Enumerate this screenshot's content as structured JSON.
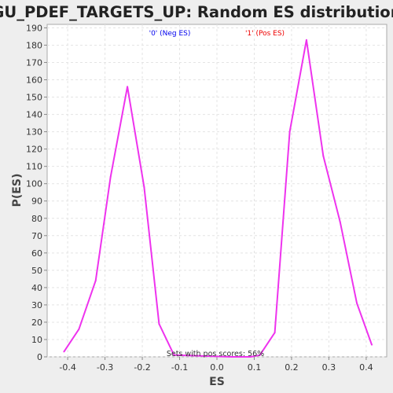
{
  "chart_data": {
    "type": "line",
    "title": "GU_PDEF_TARGETS_UP: Random ES distribution",
    "xlabel": "ES",
    "ylabel": "P(ES)",
    "xlim": [
      -0.455,
      0.455
    ],
    "ylim": [
      0,
      192
    ],
    "x_ticks": [
      "-0.4",
      "-0.3",
      "-0.2",
      "-0.1",
      "0.0",
      "0.1",
      "0.2",
      "0.3",
      "0.4"
    ],
    "x_tick_values": [
      -0.4,
      -0.3,
      -0.2,
      -0.1,
      0.0,
      0.1,
      0.2,
      0.3,
      0.4
    ],
    "y_ticks": [
      "0",
      "10",
      "20",
      "30",
      "40",
      "50",
      "60",
      "70",
      "80",
      "90",
      "100",
      "110",
      "120",
      "130",
      "140",
      "150",
      "160",
      "170",
      "180",
      "190"
    ],
    "y_tick_values": [
      0,
      10,
      20,
      30,
      40,
      50,
      60,
      70,
      80,
      90,
      100,
      110,
      120,
      130,
      140,
      150,
      160,
      170,
      180,
      190
    ],
    "grid": true,
    "legend_position": "top-center",
    "legend": [
      {
        "label": "'0' (Neg ES)",
        "color": "#0000ee"
      },
      {
        "label": "'1' (Pos ES)",
        "color": "#ee0000"
      }
    ],
    "annotation": "Sets with pos scores: 56%",
    "series": [
      {
        "color": "#ee33ee",
        "x": [
          -0.41,
          -0.37,
          -0.325,
          -0.285,
          -0.24,
          -0.195,
          -0.155,
          -0.115,
          0.04,
          0.09,
          0.115,
          0.155,
          0.195,
          0.24,
          0.285,
          0.33,
          0.375,
          0.415
        ],
        "y": [
          3,
          16,
          44,
          104,
          156,
          98,
          19,
          1,
          0,
          0,
          1,
          14,
          130,
          183,
          116,
          78,
          31,
          7
        ]
      }
    ]
  }
}
